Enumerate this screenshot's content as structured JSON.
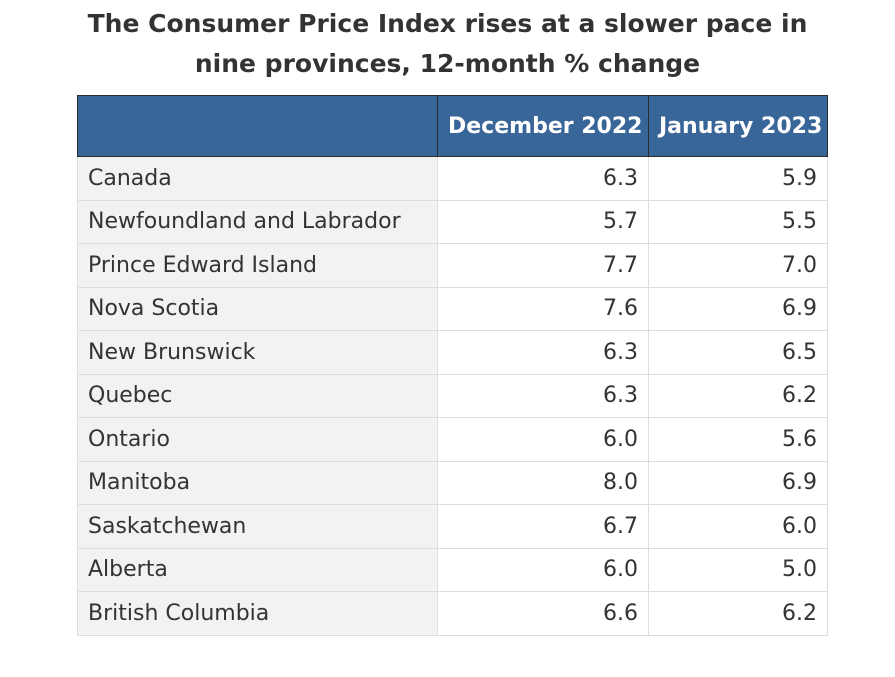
{
  "chart_data": {
    "type": "table",
    "title": "The Consumer Price Index rises at a slower pace in nine provinces, 12-month % change",
    "title_lines": [
      "The Consumer Price Index rises at a slower pace in",
      "nine provinces, 12-month % change"
    ],
    "columns": [
      "",
      "December 2022",
      "January 2023"
    ],
    "rows": [
      {
        "name": "Canada",
        "dec": "6.3",
        "jan": "5.9"
      },
      {
        "name": "Newfoundland and Labrador",
        "dec": "5.7",
        "jan": "5.5"
      },
      {
        "name": "Prince Edward Island",
        "dec": "7.7",
        "jan": "7.0"
      },
      {
        "name": "Nova Scotia",
        "dec": "7.6",
        "jan": "6.9"
      },
      {
        "name": "New Brunswick",
        "dec": "6.3",
        "jan": "6.5"
      },
      {
        "name": "Quebec",
        "dec": "6.3",
        "jan": "6.2"
      },
      {
        "name": "Ontario",
        "dec": "6.0",
        "jan": "5.6"
      },
      {
        "name": "Manitoba",
        "dec": "8.0",
        "jan": "6.9"
      },
      {
        "name": "Saskatchewan",
        "dec": "6.7",
        "jan": "6.0"
      },
      {
        "name": "Alberta",
        "dec": "6.0",
        "jan": "5.0"
      },
      {
        "name": "British Columbia",
        "dec": "6.6",
        "jan": "6.2"
      }
    ],
    "colors": {
      "header_background": "#386699",
      "header_text": "#ffffff",
      "row_label_background": "#f2f2f2",
      "text": "#333333"
    }
  }
}
